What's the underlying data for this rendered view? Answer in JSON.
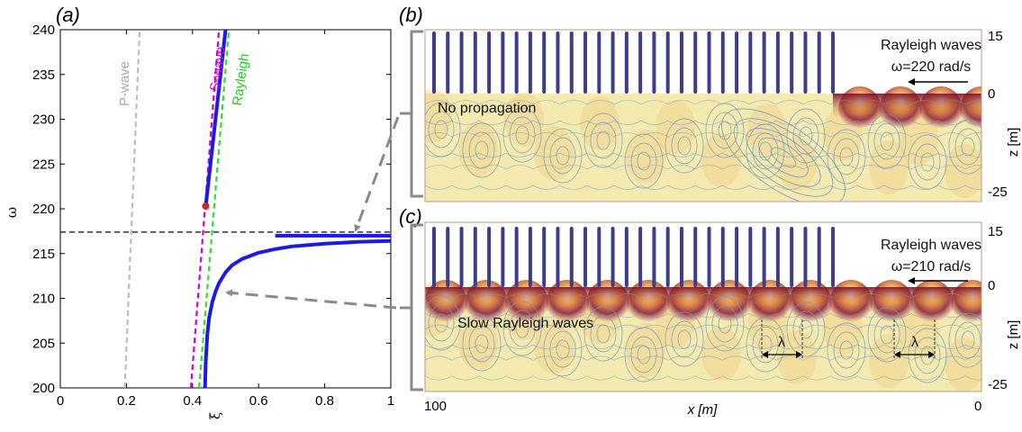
{
  "chart_data": [
    {
      "type": "line",
      "panel": "(a)",
      "xlabel": "ξ",
      "ylabel": "ω",
      "xlim": [
        0,
        1
      ],
      "ylim": [
        200,
        240
      ],
      "xticks": [
        "0",
        "0.2",
        "0.4",
        "0.6",
        "0.8",
        "1"
      ],
      "yticks": [
        "200",
        "205",
        "210",
        "215",
        "220",
        "225",
        "230",
        "235",
        "240"
      ],
      "grid": false,
      "series": [
        {
          "name": "P-wave",
          "style": "dashed",
          "color": "#bdbdbd",
          "x": [
            0.195,
            0.24
          ],
          "y": [
            200,
            240
          ]
        },
        {
          "name": "S-wave",
          "style": "dashed",
          "color": "#d400d4",
          "x": [
            0.395,
            0.48
          ],
          "y": [
            200,
            240
          ]
        },
        {
          "name": "Rayleigh",
          "style": "dashed",
          "color": "#33dd33",
          "x": [
            0.42,
            0.51
          ],
          "y": [
            200,
            240
          ]
        },
        {
          "style": "solid",
          "color": "#1a1ae6",
          "x": [
            0.438,
            0.44,
            0.445,
            0.45,
            0.46,
            0.47,
            0.48,
            0.5,
            0.52,
            0.55,
            0.6,
            0.65,
            0.7,
            0.8,
            0.9,
            1.0
          ],
          "y": [
            200,
            203,
            206,
            207.8,
            209.6,
            210.8,
            211.7,
            212.9,
            213.7,
            214.4,
            215.1,
            215.5,
            215.8,
            216.1,
            216.3,
            216.4
          ]
        },
        {
          "style": "solid",
          "color": "#1a1ae6",
          "x": [
            0.44,
            0.5
          ],
          "y": [
            220.3,
            240
          ]
        },
        {
          "style": "solid",
          "color": "#1a1ae6",
          "x": [
            0.65,
            1.0
          ],
          "y": [
            217.0,
            217.0
          ]
        }
      ],
      "reference_line": {
        "y": 217.4,
        "style": "dashed",
        "color": "#333333"
      },
      "marker": {
        "x": 0.44,
        "y": 220.3,
        "color": "#dd2222"
      }
    },
    {
      "type": "heatmap",
      "panel": "(b)",
      "annotations": [
        "Rayleigh waves",
        "ω=220 rad/s",
        "No propagation"
      ],
      "zlabel": "z [m]",
      "zticks": [
        "15",
        "0",
        "-25"
      ],
      "rod_count": 30
    },
    {
      "type": "heatmap",
      "panel": "(c)",
      "annotations": [
        "Rayleigh waves",
        "ω=210 rad/s",
        "Slow Rayleigh waves",
        "λ",
        "λ"
      ],
      "zlabel": "z [m]",
      "zticks": [
        "15",
        "0",
        "-25"
      ],
      "xlabel": "x [m]",
      "xticks": [
        "100",
        "0"
      ],
      "rod_count": 30
    }
  ],
  "colors": {
    "background_field": "#f4eab0",
    "hot": "#7a1030",
    "rod": "#3c3e8c",
    "streamline": "#6f9cc4"
  }
}
